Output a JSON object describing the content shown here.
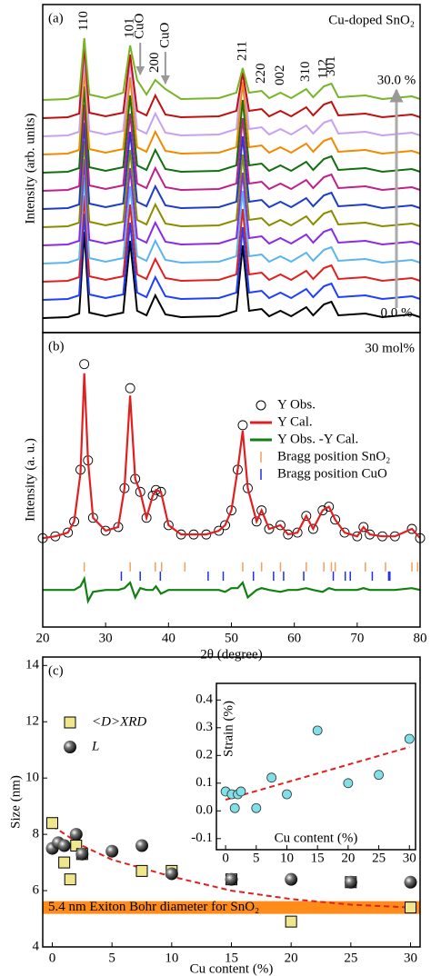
{
  "chart_data": [
    {
      "type": "line",
      "panel_label": "(a)",
      "title": "Cu-doped SnO₂",
      "ylabel": "Intensity (arb. units)",
      "xlim": [
        20,
        80
      ],
      "ylim": [
        -6,
        355
      ],
      "x": [
        20,
        24,
        25.8,
        26.6,
        27.4,
        30,
        32.8,
        33.9,
        35,
        36.5,
        37.9,
        39.5,
        42,
        48,
        50.8,
        51.8,
        52.8,
        54.8,
        56,
        57.8,
        59.5,
        61.9,
        63,
        64.7,
        65.9,
        67,
        71.3,
        74,
        78.7,
        80
      ],
      "series": [
        {
          "color": "#000000",
          "values": [
            10,
            11,
            15,
            105,
            16,
            12,
            16,
            95,
            18,
            13,
            35,
            14,
            11,
            12,
            18,
            90,
            18,
            20,
            12,
            18,
            12,
            22,
            13,
            25,
            28,
            13,
            15,
            11,
            14,
            11
          ]
        },
        {
          "color": "#1f3fff",
          "values": [
            30,
            31,
            35,
            125,
            36,
            32,
            36,
            115,
            38,
            33,
            55,
            34,
            31,
            32,
            38,
            110,
            38,
            40,
            32,
            38,
            32,
            42,
            33,
            45,
            48,
            33,
            35,
            31,
            34,
            31
          ]
        },
        {
          "color": "#e02020",
          "values": [
            50,
            51,
            55,
            145,
            56,
            52,
            56,
            135,
            58,
            53,
            75,
            54,
            51,
            52,
            58,
            130,
            58,
            60,
            52,
            58,
            52,
            62,
            53,
            65,
            68,
            53,
            55,
            51,
            54,
            51
          ]
        },
        {
          "color": "#5ab4f0",
          "values": [
            70,
            71,
            75,
            165,
            76,
            72,
            76,
            155,
            78,
            73,
            95,
            74,
            71,
            72,
            78,
            150,
            78,
            80,
            72,
            78,
            72,
            82,
            73,
            85,
            88,
            73,
            75,
            71,
            74,
            71
          ]
        },
        {
          "color": "#8a2be2",
          "values": [
            90,
            91,
            95,
            185,
            96,
            92,
            96,
            175,
            98,
            93,
            115,
            94,
            91,
            92,
            98,
            170,
            98,
            100,
            92,
            98,
            92,
            102,
            93,
            105,
            108,
            93,
            95,
            91,
            94,
            91
          ]
        },
        {
          "color": "#8b8b00",
          "values": [
            110,
            111,
            115,
            205,
            116,
            112,
            116,
            195,
            118,
            113,
            135,
            114,
            111,
            112,
            118,
            190,
            118,
            120,
            112,
            118,
            112,
            122,
            113,
            125,
            128,
            113,
            115,
            111,
            114,
            111
          ]
        },
        {
          "color": "#1e3cc8",
          "values": [
            130,
            131,
            135,
            225,
            136,
            132,
            136,
            215,
            138,
            133,
            155,
            134,
            131,
            132,
            138,
            210,
            138,
            140,
            132,
            138,
            132,
            142,
            133,
            145,
            148,
            133,
            135,
            131,
            134,
            131
          ]
        },
        {
          "color": "#c0208a",
          "values": [
            150,
            151,
            155,
            245,
            156,
            152,
            156,
            235,
            158,
            153,
            175,
            154,
            151,
            152,
            158,
            230,
            158,
            160,
            152,
            158,
            152,
            162,
            153,
            165,
            168,
            153,
            155,
            151,
            154,
            151
          ]
        },
        {
          "color": "#107010",
          "values": [
            170,
            171,
            175,
            265,
            176,
            172,
            176,
            255,
            178,
            173,
            195,
            174,
            171,
            172,
            178,
            250,
            178,
            180,
            172,
            178,
            172,
            182,
            173,
            185,
            188,
            173,
            175,
            171,
            174,
            171
          ]
        },
        {
          "color": "#f08a00",
          "values": [
            190,
            191,
            195,
            285,
            196,
            192,
            196,
            275,
            198,
            193,
            215,
            194,
            191,
            192,
            198,
            270,
            198,
            200,
            192,
            198,
            192,
            202,
            193,
            205,
            208,
            193,
            195,
            191,
            194,
            191
          ]
        },
        {
          "color": "#c8a0f0",
          "values": [
            210,
            211,
            215,
            300,
            216,
            212,
            216,
            290,
            218,
            213,
            235,
            214,
            211,
            212,
            218,
            285,
            218,
            220,
            212,
            218,
            212,
            222,
            213,
            225,
            228,
            213,
            215,
            211,
            214,
            211
          ]
        },
        {
          "color": "#c01010",
          "values": [
            230,
            231,
            235,
            310,
            236,
            232,
            236,
            300,
            238,
            233,
            255,
            234,
            231,
            232,
            238,
            280,
            238,
            240,
            232,
            238,
            232,
            242,
            233,
            245,
            248,
            233,
            235,
            231,
            234,
            231
          ]
        },
        {
          "color": "#78b428",
          "values": [
            250,
            251,
            255,
            318,
            256,
            252,
            258,
            310,
            272,
            256,
            272,
            262,
            251,
            252,
            258,
            285,
            258,
            260,
            252,
            258,
            252,
            262,
            253,
            265,
            268,
            253,
            255,
            251,
            254,
            251
          ]
        }
      ],
      "annotations": [
        {
          "text": "110",
          "x": 26.6
        },
        {
          "text": "101",
          "x": 33.9
        },
        {
          "text": "CuO",
          "x": 35.5,
          "arrow": true
        },
        {
          "text": "200",
          "x": 37.9
        },
        {
          "text": "CuO",
          "x": 39.5,
          "arrow": true
        },
        {
          "text": "211",
          "x": 51.8
        },
        {
          "text": "220",
          "x": 54.8
        },
        {
          "text": "002",
          "x": 57.8
        },
        {
          "text": "310",
          "x": 61.9
        },
        {
          "text": "112",
          "x": 64.7
        },
        {
          "text": "301",
          "x": 65.9
        }
      ],
      "start_label": "0.0 %",
      "end_label": "30.0 %"
    },
    {
      "type": "line",
      "panel_label": "(b)",
      "title": "30 mol%",
      "ylabel": "Intensity (a. u.)",
      "xlabel": "2θ (degree)",
      "xlim": [
        20,
        80
      ],
      "xticks": [
        20,
        30,
        40,
        50,
        60,
        70,
        80
      ],
      "ylim": [
        -45,
        114
      ],
      "legend": "upper right",
      "x": [
        20,
        22,
        24,
        25,
        26,
        26.6,
        27.2,
        28,
        30,
        32,
        33,
        33.9,
        34.7,
        35.5,
        36.5,
        37.5,
        38,
        38.8,
        40,
        42,
        44,
        46,
        48,
        49,
        50,
        51,
        51.8,
        52.6,
        54,
        54.8,
        56,
        57.8,
        59,
        60.5,
        61.9,
        63,
        64.5,
        65.5,
        66.5,
        68,
        70,
        71,
        72,
        74,
        76,
        78.7,
        80
      ],
      "series": [
        {
          "name": "Y Obs.",
          "color": "#000000",
          "marker": "circle",
          "values": [
            3,
            4,
            6,
            12,
            40,
            97,
            45,
            14,
            7,
            9,
            30,
            84,
            35,
            28,
            14,
            26,
            29,
            28,
            10,
            5,
            5,
            5,
            7,
            10,
            18,
            40,
            64,
            30,
            12,
            18,
            8,
            10,
            5,
            6,
            15,
            8,
            18,
            20,
            13,
            6,
            4,
            9,
            5,
            4,
            4,
            8,
            3
          ]
        },
        {
          "name": "Y Cal.",
          "color": "#e02020",
          "values": [
            3,
            4,
            6,
            12,
            38,
            92,
            45,
            14,
            7,
            9,
            30,
            80,
            35,
            28,
            14,
            26,
            29,
            28,
            10,
            5,
            5,
            5,
            7,
            10,
            18,
            40,
            61,
            30,
            12,
            18,
            8,
            10,
            5,
            6,
            15,
            8,
            18,
            20,
            13,
            6,
            4,
            9,
            5,
            4,
            4,
            8,
            3
          ]
        },
        {
          "name": "Y Obs. -Y Cal.",
          "color": "#108010",
          "values": [
            -25,
            -25,
            -25,
            -25,
            -23,
            -19,
            -31,
            -26,
            -25,
            -25,
            -24,
            -21,
            -29,
            -24,
            -25,
            -25,
            -23,
            -27,
            -25,
            -25,
            -25,
            -25,
            -25,
            -26,
            -24,
            -24,
            -21,
            -29,
            -25,
            -24,
            -25,
            -26,
            -25,
            -25,
            -24,
            -25,
            -26,
            -24,
            -25,
            -25,
            -25,
            -24,
            -25,
            -25,
            -25,
            -24,
            -25
          ]
        }
      ],
      "bragg": [
        {
          "name": "Bragg position SnO₂",
          "color": "#f0a060",
          "positions": [
            26.6,
            33.9,
            37.9,
            38.9,
            42.6,
            51.8,
            54.8,
            57.8,
            61.9,
            64.7,
            65.9,
            66.5,
            71.3,
            74.5,
            78.7,
            79.6
          ]
        },
        {
          "name": "Bragg position CuO",
          "color": "#2030e0",
          "positions": [
            32.5,
            35.5,
            38.7,
            46.3,
            48.7,
            53.5,
            56.7,
            58.3,
            61.5,
            66.2,
            68.1,
            68.9,
            72.4,
            75.0,
            75.2
          ]
        }
      ]
    },
    {
      "type": "scatter",
      "panel_label": "(c)",
      "ylabel": "Size (nm)",
      "xlabel": "Cu content (%)",
      "xlim": [
        -0.8,
        30.8
      ],
      "xticks": [
        0,
        5,
        10,
        15,
        20,
        25,
        30
      ],
      "ylim": [
        4,
        14.3
      ],
      "yticks": [
        4,
        6,
        8,
        10,
        12,
        14
      ],
      "legend": "upper left",
      "series": [
        {
          "name": "<D>XRD",
          "color": "#f0e68c",
          "marker": "square",
          "x": [
            0,
            1,
            1.5,
            2,
            2.5,
            7.5,
            10,
            15,
            20,
            25,
            30
          ],
          "values": [
            8.4,
            7.0,
            6.4,
            7.6,
            7.3,
            6.7,
            6.7,
            6.4,
            4.9,
            6.3,
            5.4
          ]
        },
        {
          "name": "L",
          "color": "#222222",
          "marker": "sphere",
          "x": [
            0,
            0.5,
            1,
            2,
            2.5,
            5,
            7.5,
            10,
            15,
            20,
            25,
            30
          ],
          "values": [
            7.5,
            7.7,
            7.6,
            8.0,
            7.3,
            7.4,
            7.6,
            6.6,
            6.4,
            6.4,
            6.3,
            6.3
          ]
        }
      ],
      "fit": {
        "color": "#e02020",
        "x": [
          0,
          2.5,
          5,
          7.5,
          10,
          15,
          20,
          25,
          30
        ],
        "values": [
          8.3,
          7.6,
          7.1,
          6.8,
          6.5,
          6.0,
          5.7,
          5.5,
          5.4
        ]
      },
      "band": {
        "value": 5.4,
        "label": "5.4 nm Exiton Bohr diameter for SnO₂",
        "color": "#ff8c1a"
      }
    },
    {
      "type": "scatter",
      "ylabel": "Strain (%)",
      "xlabel": "Cu content (%)",
      "xlim": [
        -1.5,
        31
      ],
      "xticks": [
        0,
        5,
        10,
        15,
        20,
        25,
        30
      ],
      "ylim": [
        -0.14,
        0.46
      ],
      "yticks": [
        -0.1,
        {
          "value": 0,
          "label": "0.0"
        },
        0.1,
        0.2,
        0.3,
        0.4
      ],
      "series": [
        {
          "color": "#7fe0e8",
          "marker": "circle",
          "x": [
            0,
            1,
            1.5,
            2,
            2.5,
            5,
            7.5,
            10,
            15,
            20,
            25,
            30
          ],
          "values": [
            0.07,
            0.06,
            0.01,
            0.06,
            0.07,
            0.01,
            0.12,
            0.06,
            0.29,
            0.1,
            0.13,
            0.26
          ]
        }
      ],
      "fit": {
        "color": "#e02020",
        "x": [
          0,
          30
        ],
        "values": [
          0.04,
          0.23
        ]
      }
    }
  ]
}
